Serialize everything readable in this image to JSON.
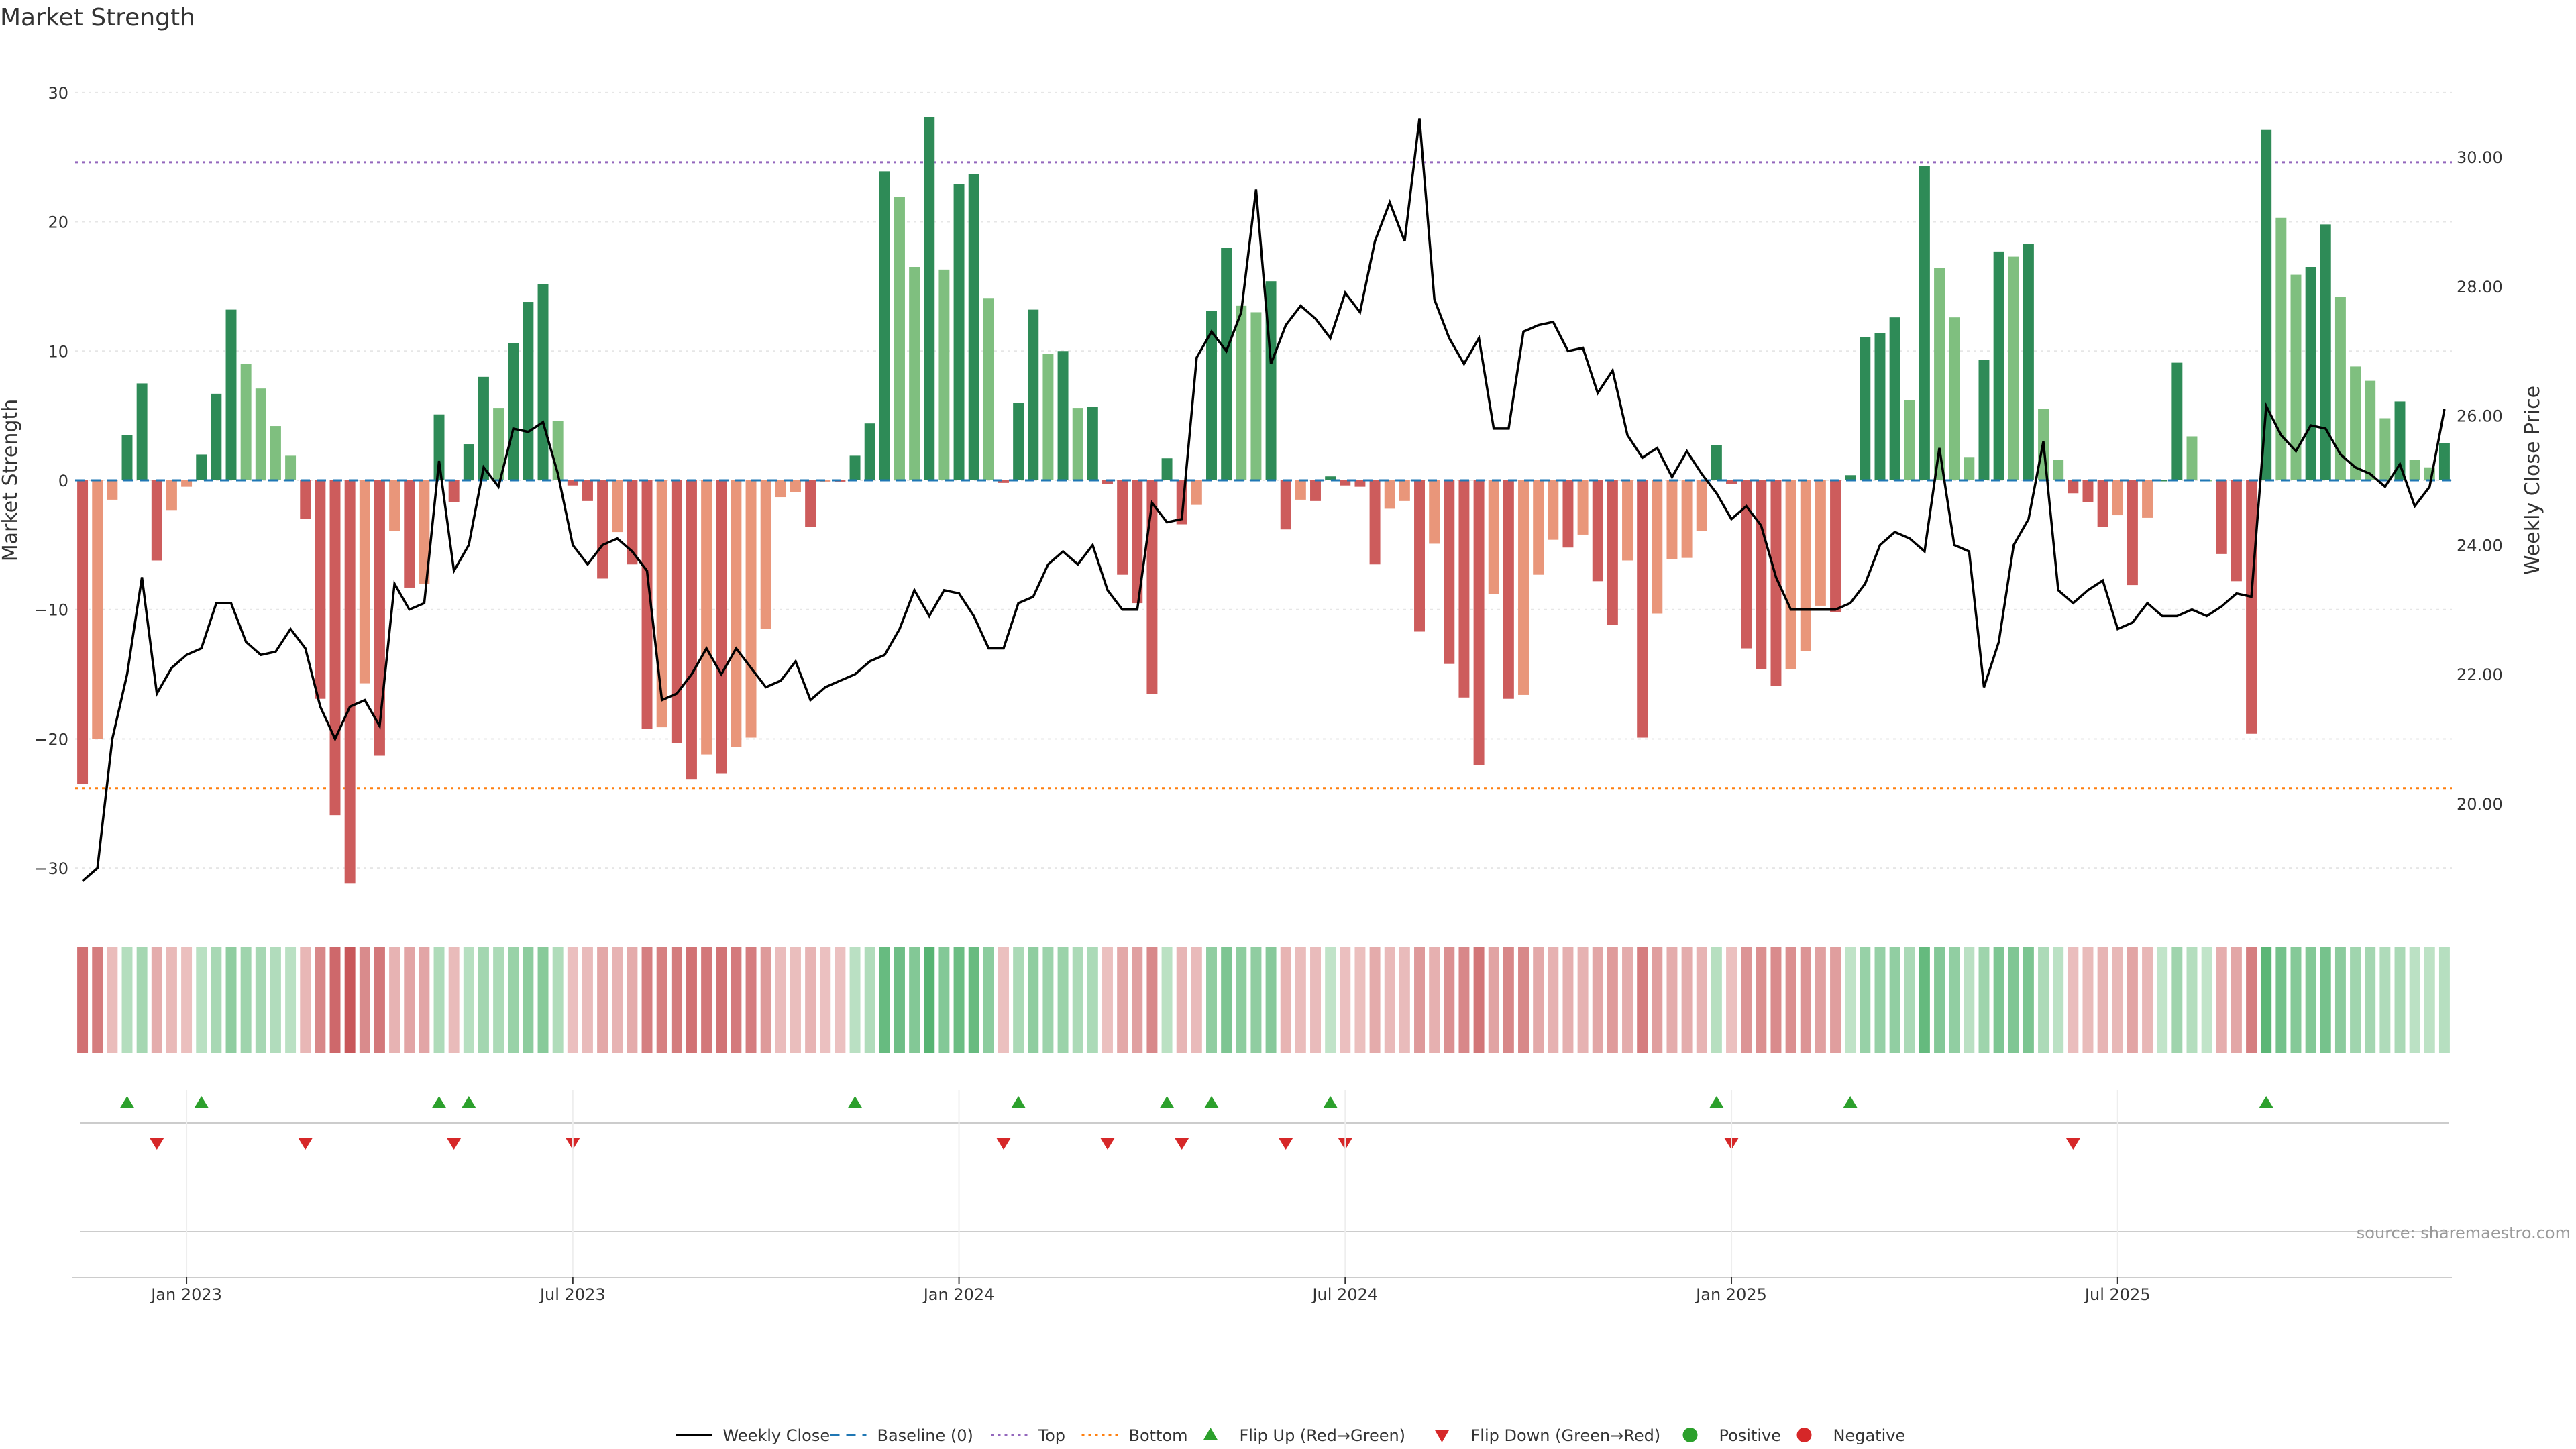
{
  "title": "Market Strength",
  "source": "source: sharemaestro.com",
  "colors": {
    "strong_green": "#2e8b57",
    "light_green": "#7fbf7f",
    "strong_red": "#cd5c5c",
    "light_red": "#e9967a",
    "price_line": "#000000",
    "baseline": "#1f77b4",
    "top": "#9467bd",
    "bottom": "#ff7f0e",
    "flip_up": "#2ca02c",
    "flip_down": "#d62728",
    "positive": "#2ca02c",
    "negative": "#d62728",
    "grid": "#e6e6e6"
  },
  "legend": [
    {
      "label": "Weekly Close",
      "kind": "line",
      "color": "#000000"
    },
    {
      "label": "Baseline (0)",
      "kind": "dash",
      "color": "#1f77b4"
    },
    {
      "label": "Top",
      "kind": "dot",
      "color": "#9467bd"
    },
    {
      "label": "Bottom",
      "kind": "dot",
      "color": "#ff7f0e"
    },
    {
      "label": "Flip Up (Red→Green)",
      "kind": "tri-up",
      "color": "#2ca02c"
    },
    {
      "label": "Flip Down (Green→Red)",
      "kind": "tri-down",
      "color": "#d62728"
    },
    {
      "label": "Positive",
      "kind": "circle",
      "color": "#2ca02c"
    },
    {
      "label": "Negative",
      "kind": "circle",
      "color": "#d62728"
    }
  ],
  "chart_data": {
    "type": "bar",
    "title": "Market Strength",
    "ylabel": "Market Strength",
    "y2label": "Weekly Close Price",
    "ylim": [
      -33,
      33
    ],
    "y2lim": [
      18.4,
      31.6
    ],
    "yticks": [
      "30",
      "20",
      "10",
      "0",
      "−10",
      "−20",
      "−30"
    ],
    "y2ticks": [
      "30.00",
      "28.00",
      "26.00",
      "24.00",
      "22.00",
      "20.00"
    ],
    "xticks": [
      "Jan 2023",
      "Jul 2023",
      "Jan 2024",
      "Jul 2024",
      "Jan 2025",
      "Jul 2025"
    ],
    "xtick_week_index": [
      7,
      33,
      59,
      85,
      111,
      137
    ],
    "top_line": 24.6,
    "bottom_line": -23.8,
    "baseline": 0,
    "strength": [
      -23.5,
      -20,
      -1.5,
      3.5,
      7.5,
      -6.2,
      -2.3,
      -0.5,
      2,
      6.7,
      13.2,
      9,
      7.1,
      4.2,
      1.9,
      -3,
      -16.9,
      -25.9,
      -31.2,
      -15.7,
      -21.3,
      -3.9,
      -8.3,
      -8,
      5.1,
      -1.7,
      2.8,
      8,
      5.6,
      10.6,
      13.8,
      15.2,
      4.6,
      -0.4,
      -1.6,
      -7.6,
      -4,
      -6.5,
      -19.2,
      -19.1,
      -20.3,
      -23.1,
      -21.2,
      -22.7,
      -20.6,
      -19.9,
      -11.5,
      -1.3,
      -0.9,
      -3.6,
      -0.1,
      -0.1,
      1.9,
      4.4,
      23.9,
      21.9,
      16.5,
      28.1,
      16.3,
      22.9,
      23.7,
      14.1,
      -0.2,
      6,
      13.2,
      9.8,
      10,
      5.6,
      5.7,
      -0.3,
      -7.3,
      -9.5,
      -16.5,
      1.7,
      -3.4,
      -1.9,
      13.1,
      18,
      13.5,
      13,
      15.4,
      -3.8,
      -1.5,
      -1.6,
      0.3,
      -0.4,
      -0.5,
      -6.5,
      -2.2,
      -1.6,
      -11.7,
      -4.9,
      -14.2,
      -16.8,
      -22,
      -8.8,
      -16.9,
      -16.6,
      -7.3,
      -4.6,
      -5.2,
      -4.2,
      -7.8,
      -11.2,
      -6.2,
      -19.9,
      -10.3,
      -6.1,
      -6,
      -3.9,
      2.7,
      -0.3,
      -13,
      -14.6,
      -15.9,
      -14.6,
      -13.2,
      -9.7,
      -10.2,
      0.4,
      11.1,
      11.4,
      12.6,
      6.2,
      24.3,
      16.4,
      12.6,
      1.8,
      9.3,
      17.7,
      17.3,
      18.3,
      5.5,
      1.6,
      -1,
      -1.7,
      -3.6,
      -2.7,
      -8.1,
      -2.9,
      0,
      9.1,
      3.4,
      0,
      -5.7,
      -7.8,
      -19.6,
      27.1,
      20.3,
      15.9,
      16.5,
      19.8,
      14.2,
      8.8,
      7.7,
      4.8,
      6.1,
      1.6,
      1,
      2.9
    ],
    "weekly_close": [
      18.8,
      19.0,
      21.0,
      22.0,
      23.5,
      21.7,
      22.1,
      22.3,
      22.4,
      23.1,
      23.1,
      22.5,
      22.3,
      22.35,
      22.7,
      22.4,
      21.5,
      21.0,
      21.5,
      21.6,
      21.2,
      23.4,
      23.0,
      23.1,
      25.3,
      23.6,
      24.0,
      25.2,
      24.9,
      25.8,
      25.75,
      25.9,
      25.1,
      24.0,
      23.7,
      24.0,
      24.1,
      23.9,
      23.6,
      21.6,
      21.7,
      22.0,
      22.4,
      22.0,
      22.4,
      22.1,
      21.8,
      21.9,
      22.2,
      21.6,
      21.8,
      21.9,
      22.0,
      22.2,
      22.3,
      22.7,
      23.3,
      22.9,
      23.3,
      23.25,
      22.9,
      22.4,
      22.4,
      23.1,
      23.2,
      23.7,
      23.9,
      23.7,
      24.0,
      23.3,
      23.0,
      23.0,
      24.65,
      24.35,
      24.4,
      26.9,
      27.3,
      27.0,
      27.6,
      29.5,
      26.8,
      27.4,
      27.7,
      27.5,
      27.2,
      27.9,
      27.6,
      28.7,
      29.3,
      28.7,
      30.6,
      27.8,
      27.2,
      26.8,
      27.2,
      25.8,
      25.8,
      27.3,
      27.4,
      27.45,
      27.0,
      27.05,
      26.35,
      26.7,
      25.7,
      25.35,
      25.5,
      25.05,
      25.45,
      25.1,
      24.8,
      24.4,
      24.6,
      24.3,
      23.5,
      23.0,
      23.0,
      23.0,
      23.0,
      23.1,
      23.4,
      24.0,
      24.2,
      24.1,
      23.9,
      25.5,
      24.0,
      23.9,
      21.8,
      22.5,
      24.0,
      24.4,
      25.6,
      23.3,
      23.1,
      23.3,
      23.45,
      22.7,
      22.8,
      23.1,
      22.9,
      22.9,
      23.0,
      22.9,
      23.05,
      23.25,
      23.2,
      26.15,
      25.7,
      25.45,
      25.85,
      25.8,
      25.4,
      25.2,
      25.1,
      24.9,
      25.25,
      24.6,
      24.9,
      26.1
    ]
  }
}
